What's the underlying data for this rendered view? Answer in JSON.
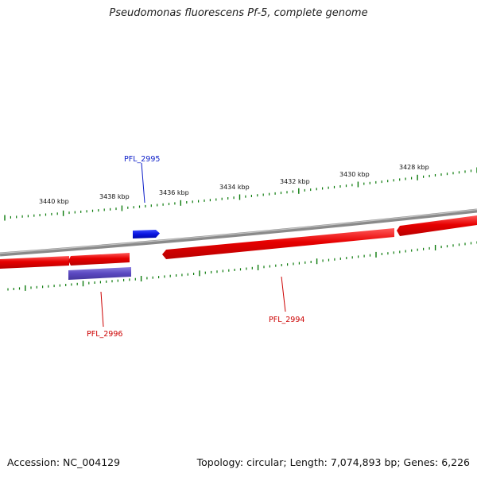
{
  "title": "Pseudomonas fluorescens Pf-5, complete genome",
  "footer": {
    "accession": "Accession: NC_004129",
    "summary": "Topology: circular; Length: 7,074,893 bp; Genes: 6,226"
  },
  "scale_labels": [
    "3440 kbp",
    "3438 kbp",
    "3436 kbp",
    "3434 kbp",
    "3432 kbp",
    "3430 kbp",
    "3428 kbp"
  ],
  "genes": [
    {
      "name": "PFL_2995",
      "color": "#0a1cc8"
    },
    {
      "name": "PFL_2996",
      "color": "#cc0000"
    },
    {
      "name": "PFL_2994",
      "color": "#cc0000"
    }
  ],
  "colors": {
    "forward_feature": "#1e1ee6",
    "reverse_feature": "#e60000",
    "rna_feature": "#5a48c0",
    "backbone": "#8a8a8a",
    "tick": "#0a7a0a"
  }
}
